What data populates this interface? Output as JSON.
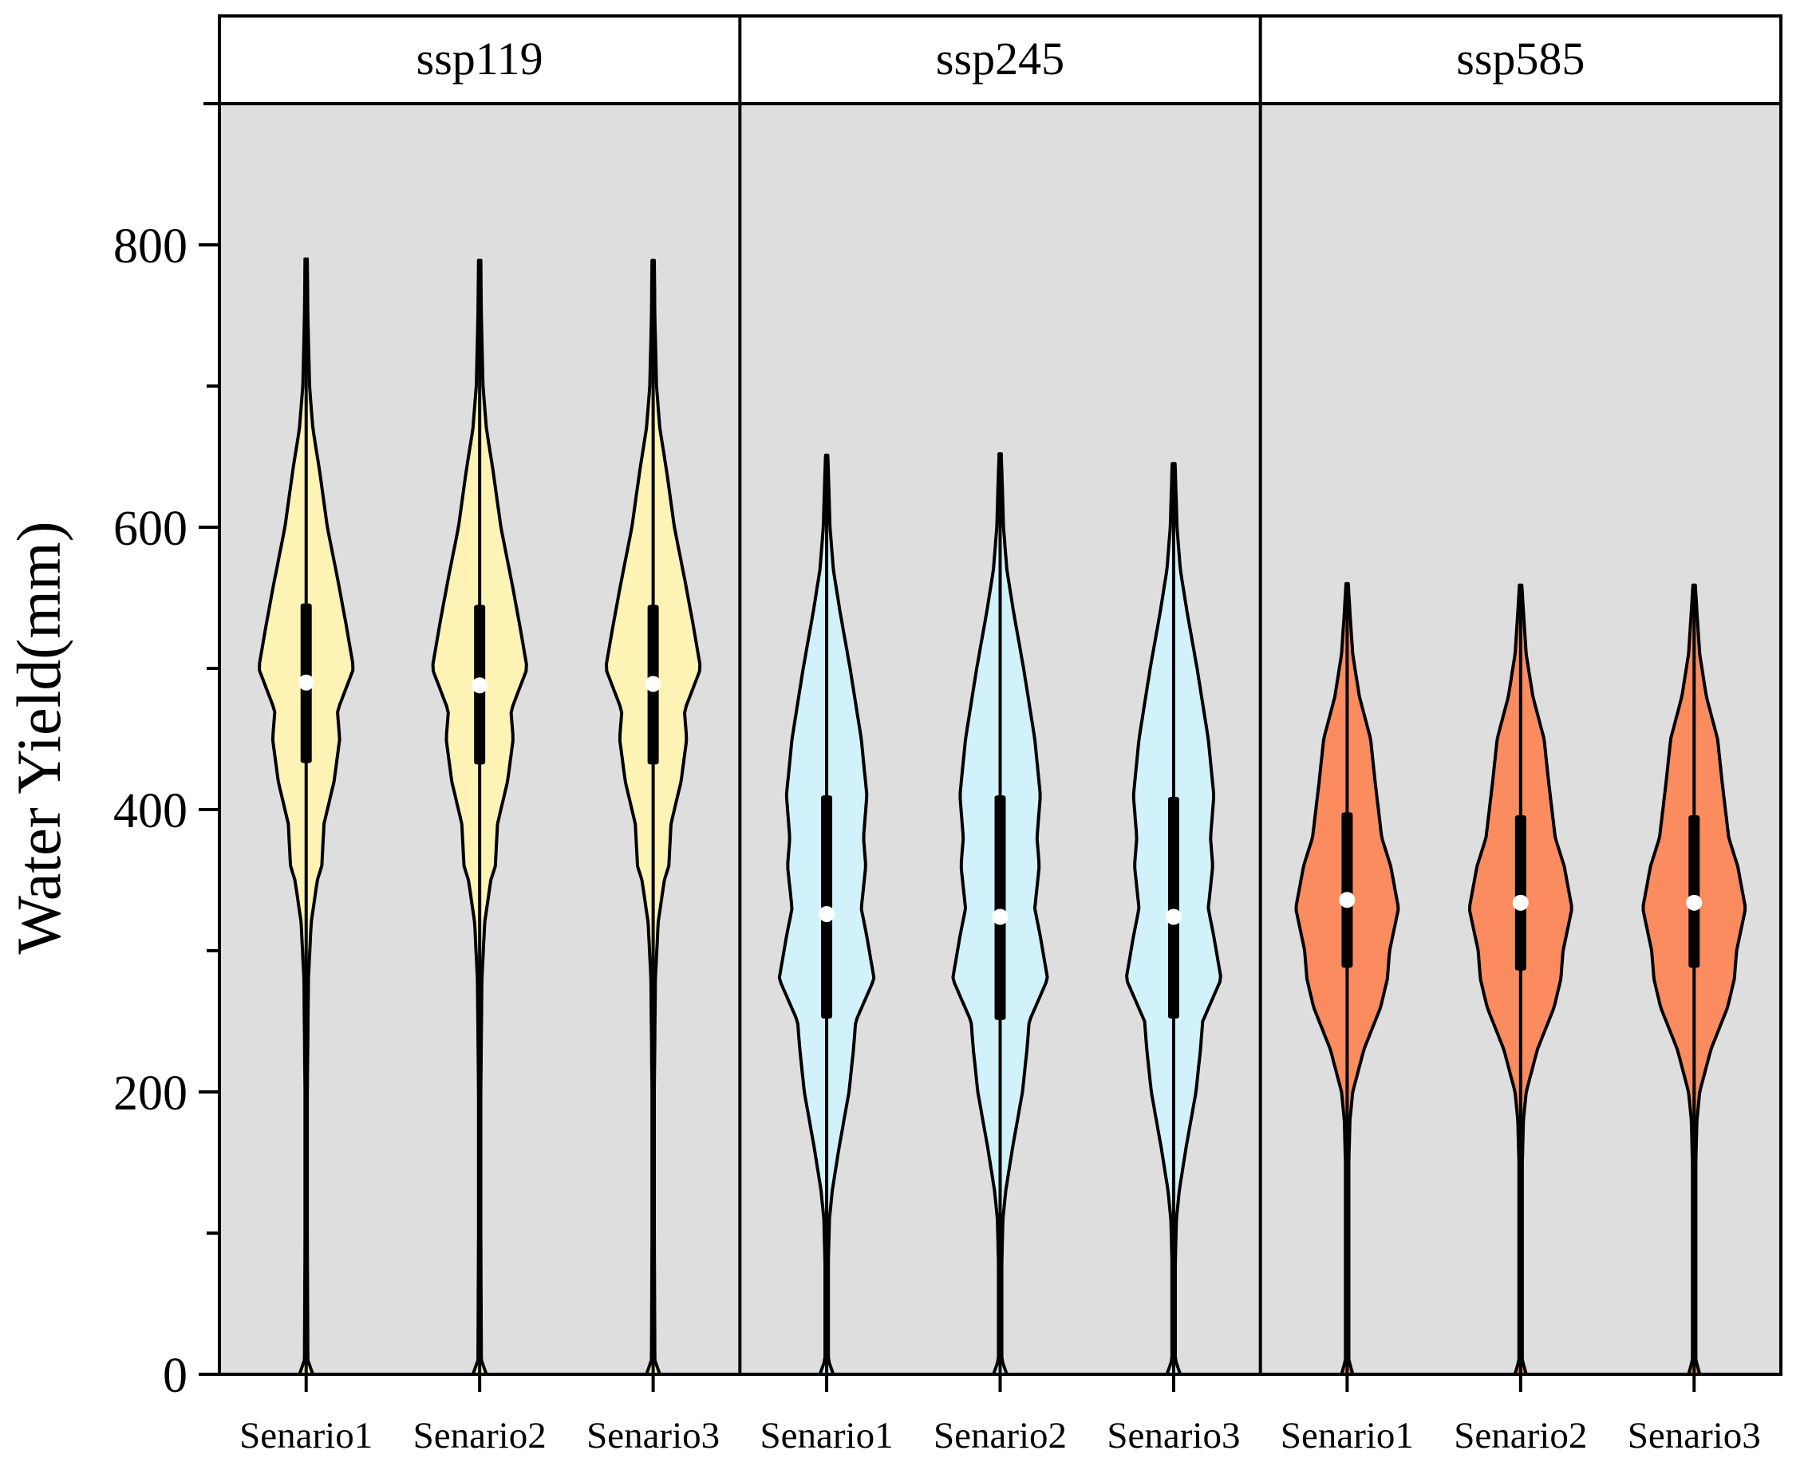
{
  "chart_data": {
    "type": "violin",
    "ylabel": "Water Yield(mm)",
    "ylim": [
      0,
      900
    ],
    "yticks": [
      0,
      200,
      400,
      600,
      800
    ],
    "categories": [
      "Senario1",
      "Senario2",
      "Senario3"
    ],
    "colors": {
      "panel_bg": "#dedede",
      "strip_bg": "#ffffff",
      "line": "#000000",
      "median_dot": "#ffffff"
    },
    "panels": [
      {
        "title": "ssp119",
        "fill": "#fdf3b4",
        "violins": [
          {
            "category": "Senario1",
            "min": 0,
            "max": 790,
            "q1": 433,
            "median": 490,
            "q3": 546
          },
          {
            "category": "Senario2",
            "min": 0,
            "max": 789,
            "q1": 432,
            "median": 488,
            "q3": 545
          },
          {
            "category": "Senario3",
            "min": 0,
            "max": 789,
            "q1": 432,
            "median": 489,
            "q3": 545
          }
        ],
        "profile": [
          [
            0,
            0.12
          ],
          [
            10,
            0.03
          ],
          [
            100,
            0.02
          ],
          [
            200,
            0.02
          ],
          [
            280,
            0.04
          ],
          [
            320,
            0.09
          ],
          [
            350,
            0.2
          ],
          [
            360,
            0.28
          ],
          [
            390,
            0.32
          ],
          [
            420,
            0.5
          ],
          [
            450,
            0.6
          ],
          [
            470,
            0.56
          ],
          [
            500,
            0.85
          ],
          [
            530,
            0.72
          ],
          [
            560,
            0.58
          ],
          [
            600,
            0.38
          ],
          [
            640,
            0.24
          ],
          [
            670,
            0.12
          ],
          [
            700,
            0.06
          ],
          [
            750,
            0.03
          ],
          [
            790,
            0.02
          ]
        ]
      },
      {
        "title": "ssp245",
        "fill": "#d2f2fb",
        "violins": [
          {
            "category": "Senario1",
            "min": 0,
            "max": 651,
            "q1": 252,
            "median": 326,
            "q3": 410
          },
          {
            "category": "Senario2",
            "min": 0,
            "max": 652,
            "q1": 251,
            "median": 324,
            "q3": 410
          },
          {
            "category": "Senario3",
            "min": 0,
            "max": 645,
            "q1": 252,
            "median": 324,
            "q3": 409
          }
        ],
        "profile": [
          [
            0,
            0.12
          ],
          [
            10,
            0.03
          ],
          [
            80,
            0.03
          ],
          [
            110,
            0.05
          ],
          [
            130,
            0.1
          ],
          [
            160,
            0.22
          ],
          [
            200,
            0.4
          ],
          [
            230,
            0.48
          ],
          [
            250,
            0.52
          ],
          [
            280,
            0.85
          ],
          [
            310,
            0.72
          ],
          [
            330,
            0.62
          ],
          [
            360,
            0.7
          ],
          [
            380,
            0.66
          ],
          [
            410,
            0.72
          ],
          [
            450,
            0.62
          ],
          [
            500,
            0.42
          ],
          [
            540,
            0.24
          ],
          [
            570,
            0.12
          ],
          [
            600,
            0.06
          ],
          [
            640,
            0.03
          ],
          [
            650,
            0.02
          ]
        ]
      },
      {
        "title": "ssp585",
        "fill": "#fb8c5f",
        "violins": [
          {
            "category": "Senario1",
            "min": 0,
            "max": 560,
            "q1": 288,
            "median": 336,
            "q3": 398
          },
          {
            "category": "Senario2",
            "min": 0,
            "max": 559,
            "q1": 286,
            "median": 334,
            "q3": 396
          },
          {
            "category": "Senario3",
            "min": 0,
            "max": 559,
            "q1": 288,
            "median": 334,
            "q3": 396
          }
        ],
        "profile": [
          [
            0,
            0.1
          ],
          [
            10,
            0.03
          ],
          [
            150,
            0.03
          ],
          [
            180,
            0.05
          ],
          [
            200,
            0.1
          ],
          [
            230,
            0.3
          ],
          [
            260,
            0.6
          ],
          [
            280,
            0.72
          ],
          [
            300,
            0.76
          ],
          [
            330,
            0.92
          ],
          [
            360,
            0.78
          ],
          [
            380,
            0.62
          ],
          [
            400,
            0.56
          ],
          [
            420,
            0.5
          ],
          [
            450,
            0.42
          ],
          [
            480,
            0.22
          ],
          [
            510,
            0.1
          ],
          [
            540,
            0.05
          ],
          [
            560,
            0.02
          ]
        ]
      }
    ]
  }
}
